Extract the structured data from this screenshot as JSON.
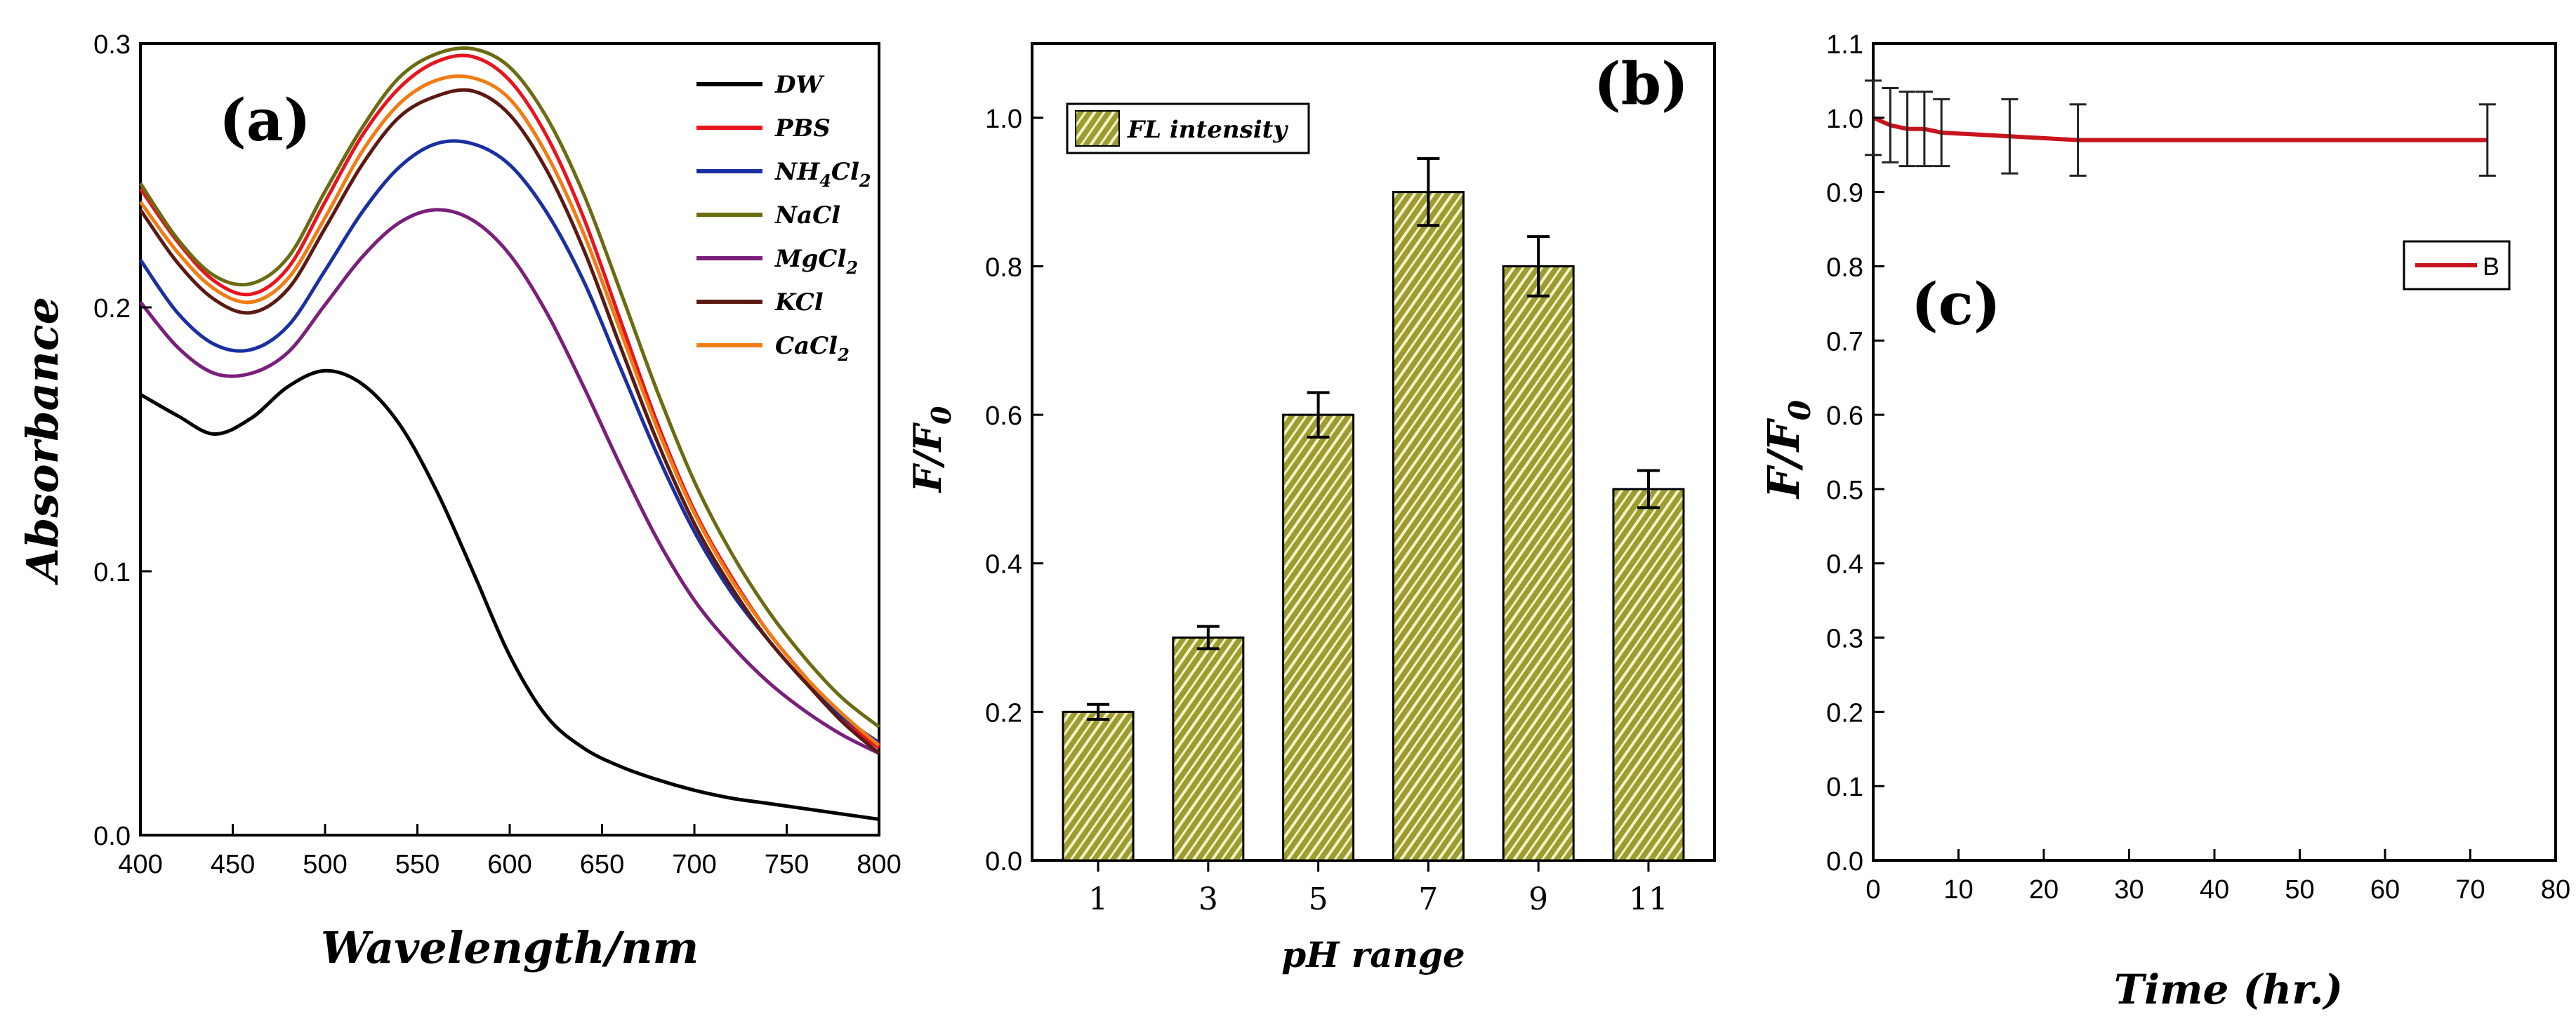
{
  "chart_data": [
    {
      "type": "line",
      "panel_label": "(a)",
      "xlabel": "Wavelength/nm",
      "ylabel": "Absorbance",
      "xlim": [
        400,
        800
      ],
      "ylim": [
        0.0,
        0.3
      ],
      "xticks": [
        "400",
        "450",
        "500",
        "550",
        "600",
        "650",
        "700",
        "750",
        "800"
      ],
      "yticks": [
        "0.0",
        "0.1",
        "0.2",
        "0.3"
      ],
      "x": [
        400,
        420,
        440,
        460,
        480,
        500,
        520,
        540,
        560,
        580,
        600,
        620,
        640,
        660,
        680,
        700,
        720,
        740,
        760,
        780,
        800
      ],
      "series": [
        {
          "name": "DW",
          "sub": "",
          "color": "#000000",
          "values": [
            0.167,
            0.159,
            0.152,
            0.158,
            0.17,
            0.176,
            0.171,
            0.156,
            0.131,
            0.1,
            0.068,
            0.045,
            0.033,
            0.026,
            0.021,
            0.017,
            0.014,
            0.012,
            0.01,
            0.008,
            0.006
          ]
        },
        {
          "name": "PBS",
          "sub": "",
          "color": "#e8141e",
          "values": [
            0.245,
            0.225,
            0.21,
            0.205,
            0.215,
            0.24,
            0.265,
            0.283,
            0.293,
            0.295,
            0.286,
            0.265,
            0.234,
            0.195,
            0.156,
            0.123,
            0.098,
            0.077,
            0.06,
            0.044,
            0.033
          ]
        },
        {
          "name": "NH",
          "sub": "4",
          "post": "Cl",
          "sub2": "2",
          "color": "#1a2fa0",
          "values": [
            0.218,
            0.198,
            0.186,
            0.184,
            0.193,
            0.214,
            0.236,
            0.253,
            0.262,
            0.262,
            0.254,
            0.236,
            0.21,
            0.177,
            0.144,
            0.115,
            0.092,
            0.074,
            0.058,
            0.045,
            0.035
          ]
        },
        {
          "name": "NaCl",
          "sub": "",
          "color": "#6b6b12",
          "values": [
            0.247,
            0.226,
            0.212,
            0.209,
            0.219,
            0.244,
            0.268,
            0.287,
            0.296,
            0.298,
            0.291,
            0.272,
            0.243,
            0.206,
            0.168,
            0.134,
            0.107,
            0.085,
            0.067,
            0.052,
            0.041
          ]
        },
        {
          "name": "MgCl",
          "sub": "2",
          "color": "#7a1f7a",
          "values": [
            0.202,
            0.185,
            0.175,
            0.175,
            0.183,
            0.201,
            0.219,
            0.232,
            0.237,
            0.233,
            0.22,
            0.198,
            0.17,
            0.14,
            0.112,
            0.089,
            0.072,
            0.058,
            0.047,
            0.038,
            0.031
          ]
        },
        {
          "name": "KCl",
          "sub": "",
          "color": "#5a1a12",
          "values": [
            0.237,
            0.217,
            0.203,
            0.198,
            0.207,
            0.23,
            0.254,
            0.272,
            0.28,
            0.282,
            0.273,
            0.252,
            0.222,
            0.185,
            0.149,
            0.118,
            0.094,
            0.074,
            0.058,
            0.043,
            0.031
          ]
        },
        {
          "name": "CaCl",
          "sub": "2",
          "color": "#f07c14",
          "values": [
            0.24,
            0.221,
            0.207,
            0.202,
            0.211,
            0.234,
            0.259,
            0.277,
            0.286,
            0.287,
            0.279,
            0.258,
            0.228,
            0.191,
            0.154,
            0.122,
            0.097,
            0.077,
            0.06,
            0.046,
            0.034
          ]
        }
      ]
    },
    {
      "type": "bar",
      "panel_label": "(b)",
      "xlabel": "pH range",
      "ylabel": "F/F",
      "ylabel_sub": "0",
      "legend": "FL intensity",
      "ylim": [
        0.0,
        1.1
      ],
      "yticks": [
        "0.0",
        "0.2",
        "0.4",
        "0.6",
        "0.8",
        "1.0"
      ],
      "categories": [
        "1",
        "3",
        "5",
        "7",
        "9",
        "11"
      ],
      "values": [
        0.2,
        0.3,
        0.6,
        0.9,
        0.8,
        0.5
      ],
      "errors": [
        0.01,
        0.015,
        0.03,
        0.045,
        0.04,
        0.025
      ],
      "bar_color": "#9c9c33"
    },
    {
      "type": "line",
      "panel_label": "(c)",
      "xlabel": "Time (hr.)",
      "ylabel": "F/F",
      "ylabel_sub": "0",
      "legend": "B",
      "xlim": [
        0,
        80
      ],
      "ylim": [
        0.0,
        1.1
      ],
      "xticks": [
        "0",
        "10",
        "20",
        "30",
        "40",
        "50",
        "60",
        "70",
        "80"
      ],
      "yticks": [
        "0.0",
        "0.1",
        "0.2",
        "0.3",
        "0.4",
        "0.5",
        "0.6",
        "0.7",
        "0.8",
        "0.9",
        "1.0",
        "1.1"
      ],
      "x": [
        0,
        2,
        4,
        6,
        8,
        16,
        24,
        72
      ],
      "values": [
        1.0,
        0.99,
        0.985,
        0.985,
        0.98,
        0.975,
        0.97,
        0.97
      ],
      "errors": [
        0.05,
        0.05,
        0.05,
        0.05,
        0.045,
        0.05,
        0.048,
        0.048
      ],
      "color": "#c8141e"
    }
  ]
}
